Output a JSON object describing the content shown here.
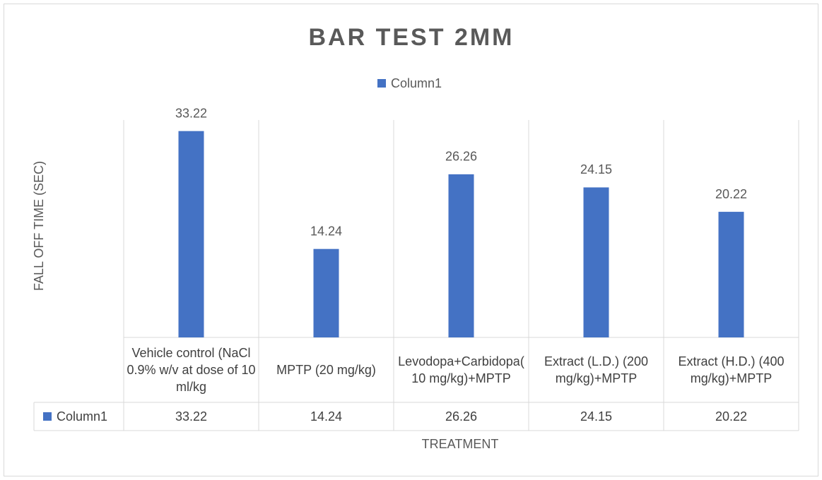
{
  "chart_data": {
    "type": "bar",
    "title": "BAR TEST 2MM",
    "categories": [
      "Vehicle control (NaCl 0.9% w/v at dose of 10 ml/kg",
      "MPTP (20 mg/kg)",
      "Levodopa+Carbidopa(10 mg/kg)+MPTP",
      "Extract (L.D.)  (200 mg/kg)+MPTP",
      "Extract (H.D.) (400 mg/kg)+MPTP"
    ],
    "series": [
      {
        "name": "Column1",
        "color": "#4472c4",
        "values": [
          33.22,
          14.24,
          26.26,
          24.15,
          20.22
        ]
      }
    ],
    "ylim": [
      0,
      35
    ],
    "x_label": "TREATMENT",
    "y_label": "FALL OFF TIME (SEC)",
    "legend": "top",
    "data_table": true
  }
}
